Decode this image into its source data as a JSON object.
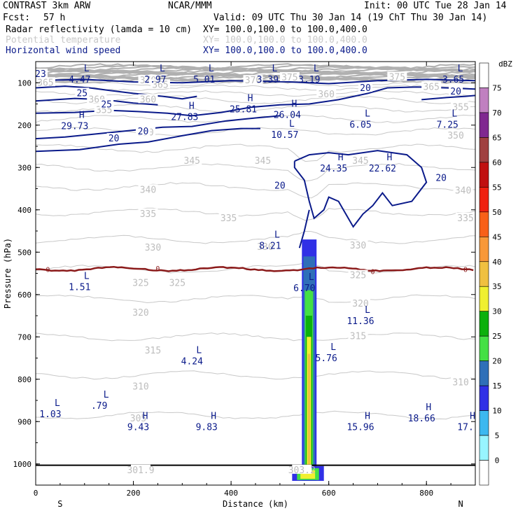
{
  "header": {
    "title": "CONTRAST  3km ARW",
    "center": "NCAR/MMM",
    "init": "Init: 00 UTC Tue 28 Jan 14",
    "fcst_label": "Fcst:",
    "fcst_value": "57 h",
    "valid": "Valid: 09 UTC Thu 30 Jan 14 (19 ChT Thu 30 Jan 14)"
  },
  "fields": [
    {
      "name": "Radar reflectivity (lamda = 10 cm)",
      "xy": "XY= 100.0,100.0 to 100.0,400.0",
      "color": "#000000"
    },
    {
      "name": "Potential temperature",
      "xy": "XY= 100.0,100.0 to 100.0,400.0",
      "color": "#c8c8c8"
    },
    {
      "name": "Horizontal wind speed",
      "xy": "XY= 100.0,100.0 to 100.0,400.0",
      "color": "#0a1a8a"
    }
  ],
  "chart_data": {
    "type": "cross-section",
    "xlabel": "Distance (km)",
    "ylabel": "Pressure (hPa)",
    "xlim": [
      0,
      900
    ],
    "ylim": [
      1050,
      50
    ],
    "x_ticks": [
      0,
      200,
      400,
      600,
      800
    ],
    "y_ticks": [
      100,
      200,
      300,
      400,
      500,
      600,
      700,
      800,
      900,
      1000
    ],
    "x_end_labels": {
      "left": "S",
      "right": "N"
    },
    "colorbar": {
      "unit": "dBZ",
      "levels": [
        0,
        5,
        10,
        15,
        20,
        25,
        30,
        35,
        40,
        45,
        50,
        55,
        60,
        65,
        70,
        75
      ],
      "colors": [
        "#ffffff",
        "#98f5ff",
        "#3cb8f0",
        "#3030e6",
        "#2f6fb8",
        "#44e044",
        "#0cb00c",
        "#f0f030",
        "#f0c040",
        "#f89838",
        "#f86018",
        "#f02010",
        "#c01010",
        "#a04040",
        "#802890",
        "#c080c0",
        "#ffffff"
      ]
    },
    "theta_labels": [
      {
        "text": "365",
        "x": 20,
        "p": 100
      },
      {
        "text": "370",
        "x": 230,
        "p": 95
      },
      {
        "text": "365",
        "x": 255,
        "p": 105
      },
      {
        "text": "360",
        "x": 125,
        "p": 140
      },
      {
        "text": "360",
        "x": 230,
        "p": 140
      },
      {
        "text": "355",
        "x": 140,
        "p": 165
      },
      {
        "text": "370",
        "x": 445,
        "p": 95
      },
      {
        "text": "375",
        "x": 520,
        "p": 88
      },
      {
        "text": "375",
        "x": 740,
        "p": 87
      },
      {
        "text": "365",
        "x": 810,
        "p": 110
      },
      {
        "text": "360",
        "x": 595,
        "p": 128
      },
      {
        "text": "355",
        "x": 870,
        "p": 158
      },
      {
        "text": "350",
        "x": 225,
        "p": 218
      },
      {
        "text": "350",
        "x": 860,
        "p": 225
      },
      {
        "text": "345",
        "x": 320,
        "p": 285
      },
      {
        "text": "345",
        "x": 465,
        "p": 285
      },
      {
        "text": "345",
        "x": 665,
        "p": 285
      },
      {
        "text": "340",
        "x": 230,
        "p": 353
      },
      {
        "text": "340",
        "x": 875,
        "p": 355
      },
      {
        "text": "335",
        "x": 230,
        "p": 410
      },
      {
        "text": "335",
        "x": 395,
        "p": 420
      },
      {
        "text": "335",
        "x": 880,
        "p": 420
      },
      {
        "text": "330",
        "x": 240,
        "p": 490
      },
      {
        "text": "330",
        "x": 470,
        "p": 488
      },
      {
        "text": "330",
        "x": 660,
        "p": 485
      },
      {
        "text": "325",
        "x": 215,
        "p": 573
      },
      {
        "text": "325",
        "x": 290,
        "p": 573
      },
      {
        "text": "325",
        "x": 660,
        "p": 555
      },
      {
        "text": "320",
        "x": 215,
        "p": 643
      },
      {
        "text": "320",
        "x": 665,
        "p": 622
      },
      {
        "text": "315",
        "x": 240,
        "p": 733
      },
      {
        "text": "315",
        "x": 660,
        "p": 699
      },
      {
        "text": "310",
        "x": 215,
        "p": 818
      },
      {
        "text": "310",
        "x": 870,
        "p": 808
      },
      {
        "text": "305",
        "x": 210,
        "p": 893
      },
      {
        "text": "301.9",
        "x": 215,
        "p": 1015
      },
      {
        "text": "303.2",
        "x": 545,
        "p": 1015
      }
    ],
    "wind_labels": [
      {
        "text": "25",
        "x": 95,
        "p": 125
      },
      {
        "text": "25",
        "x": 145,
        "p": 152
      },
      {
        "text": "20",
        "x": 220,
        "p": 215
      },
      {
        "text": "20",
        "x": 160,
        "p": 232
      },
      {
        "text": "20",
        "x": 675,
        "p": 113
      },
      {
        "text": "20",
        "x": 860,
        "p": 121
      },
      {
        "text": "20",
        "x": 500,
        "p": 343
      },
      {
        "text": "20",
        "x": 830,
        "p": 325
      },
      {
        "text": "23",
        "x": 10,
        "p": 80
      }
    ],
    "extrema": [
      {
        "type": "L",
        "value": "4.47",
        "x": 90,
        "p": 80
      },
      {
        "type": "L",
        "value": "2.97",
        "x": 245,
        "p": 80
      },
      {
        "type": "L",
        "value": "5.01",
        "x": 345,
        "p": 80
      },
      {
        "type": "L",
        "value": "3.39",
        "x": 475,
        "p": 80
      },
      {
        "type": "L",
        "value": "3.19",
        "x": 560,
        "p": 80
      },
      {
        "type": "L",
        "value": "3.65",
        "x": 855,
        "p": 80
      },
      {
        "type": "H",
        "value": "25.81",
        "x": 425,
        "p": 150
      },
      {
        "type": "H",
        "value": "27.83",
        "x": 305,
        "p": 168
      },
      {
        "type": "H",
        "value": "29.73",
        "x": 80,
        "p": 190
      },
      {
        "type": "H",
        "value": "26.04",
        "x": 515,
        "p": 163
      },
      {
        "type": "L",
        "value": "6.05",
        "x": 665,
        "p": 186
      },
      {
        "type": "L",
        "value": "7.25",
        "x": 843,
        "p": 186
      },
      {
        "type": "L",
        "value": "10.57",
        "x": 510,
        "p": 210
      },
      {
        "type": "H",
        "value": "24.35",
        "x": 610,
        "p": 290
      },
      {
        "type": "H",
        "value": "22.62",
        "x": 710,
        "p": 290
      },
      {
        "type": "L",
        "value": "8.21",
        "x": 480,
        "p": 472
      },
      {
        "type": "L",
        "value": "1.51",
        "x": 90,
        "p": 570
      },
      {
        "type": "L",
        "value": "6.70",
        "x": 550,
        "p": 572
      },
      {
        "type": "L",
        "value": "11.36",
        "x": 665,
        "p": 650
      },
      {
        "type": "L",
        "value": "5.76",
        "x": 595,
        "p": 738
      },
      {
        "type": "L",
        "value": "4.24",
        "x": 320,
        "p": 745
      },
      {
        "type": "L",
        "value": ".79",
        "x": 130,
        "p": 850
      },
      {
        "type": "L",
        "value": "1.03",
        "x": 30,
        "p": 870
      },
      {
        "type": "H",
        "value": "9.43",
        "x": 210,
        "p": 900
      },
      {
        "type": "H",
        "value": "9.83",
        "x": 350,
        "p": 900
      },
      {
        "type": "H",
        "value": "15.96",
        "x": 665,
        "p": 900
      },
      {
        "type": "H",
        "value": "18.66",
        "x": 790,
        "p": 880
      },
      {
        "type": "H",
        "value": "17.",
        "x": 880,
        "p": 900
      }
    ],
    "zero_isotherm": {
      "label": "0",
      "p": 540
    }
  }
}
